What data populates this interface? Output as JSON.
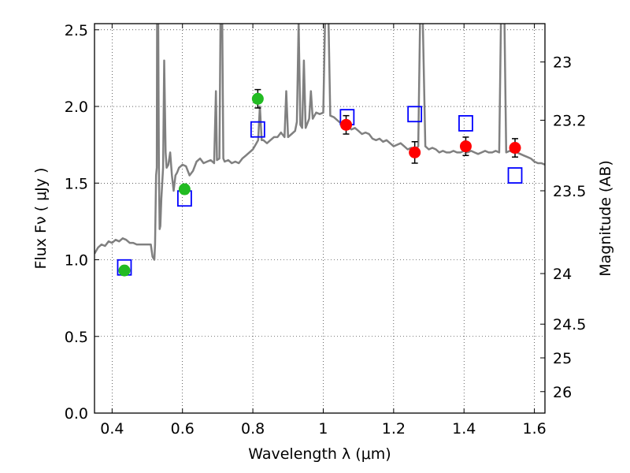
{
  "chart_data": {
    "type": "line",
    "xlabel": "Wavelength  λ (μm)",
    "ylabel": "Flux  Fν  ( μJy )",
    "y2label": "Magnitude (AB)",
    "xlim": [
      0.35,
      1.63
    ],
    "ylim": [
      0.0,
      2.54
    ],
    "x_ticks": [
      0.4,
      0.6,
      0.8,
      1.0,
      1.2,
      1.4,
      1.6
    ],
    "x_tick_labels": [
      "0.4",
      "0.6",
      "0.8",
      "1",
      "1.2",
      "1.4",
      "1.6"
    ],
    "y_ticks": [
      0.0,
      0.5,
      1.0,
      1.5,
      2.0,
      2.5
    ],
    "y_tick_labels": [
      "0.0",
      "0.5",
      "1.0",
      "1.5",
      "2.0",
      "2.5"
    ],
    "y2_ticks": [
      {
        "label": "23",
        "flux": 2.29
      },
      {
        "label": "23.2",
        "flux": 1.91
      },
      {
        "label": "23.5",
        "flux": 1.45
      },
      {
        "label": "24",
        "flux": 0.91
      },
      {
        "label": "24.5",
        "flux": 0.58
      },
      {
        "label": "25",
        "flux": 0.36
      },
      {
        "label": "26",
        "flux": 0.14
      }
    ],
    "grid": "dotted",
    "colors": {
      "model": "#808080",
      "green": "#22bb22",
      "red": "#ff0000",
      "blue": "#0000ff"
    },
    "series": [
      {
        "kind": "model_spectrum",
        "points": [
          [
            0.35,
            1.04
          ],
          [
            0.36,
            1.08
          ],
          [
            0.37,
            1.1
          ],
          [
            0.38,
            1.09
          ],
          [
            0.39,
            1.12
          ],
          [
            0.4,
            1.11
          ],
          [
            0.41,
            1.13
          ],
          [
            0.42,
            1.12
          ],
          [
            0.43,
            1.14
          ],
          [
            0.44,
            1.13
          ],
          [
            0.45,
            1.11
          ],
          [
            0.46,
            1.11
          ],
          [
            0.47,
            1.1
          ],
          [
            0.48,
            1.1
          ],
          [
            0.49,
            1.1
          ],
          [
            0.5,
            1.1
          ],
          [
            0.51,
            1.1
          ],
          [
            0.515,
            1.02
          ],
          [
            0.52,
            1.0
          ],
          [
            0.522,
            1.1
          ],
          [
            0.525,
            1.55
          ],
          [
            0.527,
            1.6
          ],
          [
            0.528,
            2.55
          ],
          [
            0.531,
            2.55
          ],
          [
            0.533,
            1.6
          ],
          [
            0.535,
            1.2
          ],
          [
            0.537,
            1.22
          ],
          [
            0.54,
            1.4
          ],
          [
            0.545,
            1.6
          ],
          [
            0.548,
            2.3
          ],
          [
            0.552,
            1.7
          ],
          [
            0.555,
            1.6
          ],
          [
            0.56,
            1.62
          ],
          [
            0.565,
            1.7
          ],
          [
            0.57,
            1.55
          ],
          [
            0.575,
            1.45
          ],
          [
            0.58,
            1.55
          ],
          [
            0.585,
            1.57
          ],
          [
            0.59,
            1.6
          ],
          [
            0.6,
            1.62
          ],
          [
            0.61,
            1.61
          ],
          [
            0.62,
            1.55
          ],
          [
            0.63,
            1.58
          ],
          [
            0.64,
            1.64
          ],
          [
            0.65,
            1.66
          ],
          [
            0.66,
            1.63
          ],
          [
            0.67,
            1.64
          ],
          [
            0.68,
            1.65
          ],
          [
            0.69,
            1.63
          ],
          [
            0.695,
            2.1
          ],
          [
            0.698,
            1.65
          ],
          [
            0.705,
            1.66
          ],
          [
            0.708,
            2.55
          ],
          [
            0.713,
            2.55
          ],
          [
            0.716,
            1.66
          ],
          [
            0.72,
            1.64
          ],
          [
            0.73,
            1.65
          ],
          [
            0.74,
            1.63
          ],
          [
            0.75,
            1.64
          ],
          [
            0.76,
            1.63
          ],
          [
            0.77,
            1.66
          ],
          [
            0.78,
            1.68
          ],
          [
            0.79,
            1.7
          ],
          [
            0.8,
            1.72
          ],
          [
            0.81,
            1.76
          ],
          [
            0.815,
            1.78
          ],
          [
            0.82,
            2.0
          ],
          [
            0.825,
            1.78
          ],
          [
            0.83,
            1.78
          ],
          [
            0.84,
            1.76
          ],
          [
            0.85,
            1.78
          ],
          [
            0.86,
            1.8
          ],
          [
            0.87,
            1.8
          ],
          [
            0.88,
            1.83
          ],
          [
            0.89,
            1.8
          ],
          [
            0.895,
            2.1
          ],
          [
            0.9,
            1.8
          ],
          [
            0.91,
            1.82
          ],
          [
            0.92,
            1.84
          ],
          [
            0.925,
            1.9
          ],
          [
            0.93,
            2.55
          ],
          [
            0.935,
            1.88
          ],
          [
            0.94,
            1.86
          ],
          [
            0.945,
            2.3
          ],
          [
            0.95,
            1.86
          ],
          [
            0.96,
            1.92
          ],
          [
            0.965,
            2.1
          ],
          [
            0.97,
            1.92
          ],
          [
            0.98,
            1.96
          ],
          [
            0.99,
            1.95
          ],
          [
            1.0,
            1.96
          ],
          [
            1.005,
            2.55
          ],
          [
            1.015,
            2.55
          ],
          [
            1.02,
            1.94
          ],
          [
            1.03,
            1.93
          ],
          [
            1.04,
            1.91
          ],
          [
            1.05,
            1.89
          ],
          [
            1.06,
            1.86
          ],
          [
            1.07,
            1.87
          ],
          [
            1.08,
            1.85
          ],
          [
            1.09,
            1.86
          ],
          [
            1.1,
            1.84
          ],
          [
            1.11,
            1.82
          ],
          [
            1.12,
            1.83
          ],
          [
            1.13,
            1.82
          ],
          [
            1.14,
            1.79
          ],
          [
            1.15,
            1.78
          ],
          [
            1.16,
            1.79
          ],
          [
            1.17,
            1.77
          ],
          [
            1.18,
            1.78
          ],
          [
            1.19,
            1.76
          ],
          [
            1.2,
            1.74
          ],
          [
            1.21,
            1.75
          ],
          [
            1.22,
            1.76
          ],
          [
            1.23,
            1.74
          ],
          [
            1.24,
            1.72
          ],
          [
            1.25,
            1.73
          ],
          [
            1.26,
            1.72
          ],
          [
            1.27,
            1.74
          ],
          [
            1.275,
            2.55
          ],
          [
            1.283,
            2.55
          ],
          [
            1.29,
            1.74
          ],
          [
            1.3,
            1.72
          ],
          [
            1.31,
            1.73
          ],
          [
            1.32,
            1.72
          ],
          [
            1.33,
            1.7
          ],
          [
            1.34,
            1.71
          ],
          [
            1.35,
            1.7
          ],
          [
            1.36,
            1.7
          ],
          [
            1.37,
            1.71
          ],
          [
            1.38,
            1.7
          ],
          [
            1.39,
            1.7
          ],
          [
            1.4,
            1.71
          ],
          [
            1.41,
            1.7
          ],
          [
            1.42,
            1.71
          ],
          [
            1.43,
            1.7
          ],
          [
            1.44,
            1.69
          ],
          [
            1.45,
            1.7
          ],
          [
            1.46,
            1.71
          ],
          [
            1.47,
            1.7
          ],
          [
            1.48,
            1.7
          ],
          [
            1.49,
            1.71
          ],
          [
            1.5,
            1.7
          ],
          [
            1.505,
            2.55
          ],
          [
            1.515,
            2.55
          ],
          [
            1.52,
            1.7
          ],
          [
            1.53,
            1.71
          ],
          [
            1.54,
            1.7
          ],
          [
            1.55,
            1.7
          ],
          [
            1.56,
            1.69
          ],
          [
            1.57,
            1.68
          ],
          [
            1.58,
            1.67
          ],
          [
            1.59,
            1.66
          ],
          [
            1.6,
            1.64
          ],
          [
            1.61,
            1.63
          ],
          [
            1.62,
            1.63
          ],
          [
            1.63,
            1.62
          ]
        ]
      },
      {
        "kind": "observed_green",
        "points": [
          {
            "x": 0.435,
            "y": 0.93,
            "err": 0.03
          },
          {
            "x": 0.606,
            "y": 1.46,
            "err": 0.03
          },
          {
            "x": 0.814,
            "y": 2.05,
            "err": 0.06
          }
        ]
      },
      {
        "kind": "observed_red",
        "points": [
          {
            "x": 1.065,
            "y": 1.88,
            "err": 0.06
          },
          {
            "x": 1.26,
            "y": 1.7,
            "err": 0.07
          },
          {
            "x": 1.405,
            "y": 1.74,
            "err": 0.06
          },
          {
            "x": 1.545,
            "y": 1.73,
            "err": 0.06
          }
        ]
      },
      {
        "kind": "model_photometry_blue",
        "points": [
          {
            "x": 0.435,
            "y": 0.95
          },
          {
            "x": 0.606,
            "y": 1.4
          },
          {
            "x": 0.814,
            "y": 1.85
          },
          {
            "x": 1.068,
            "y": 1.93
          },
          {
            "x": 1.26,
            "y": 1.95
          },
          {
            "x": 1.405,
            "y": 1.89
          },
          {
            "x": 1.545,
            "y": 1.55
          }
        ]
      }
    ]
  }
}
